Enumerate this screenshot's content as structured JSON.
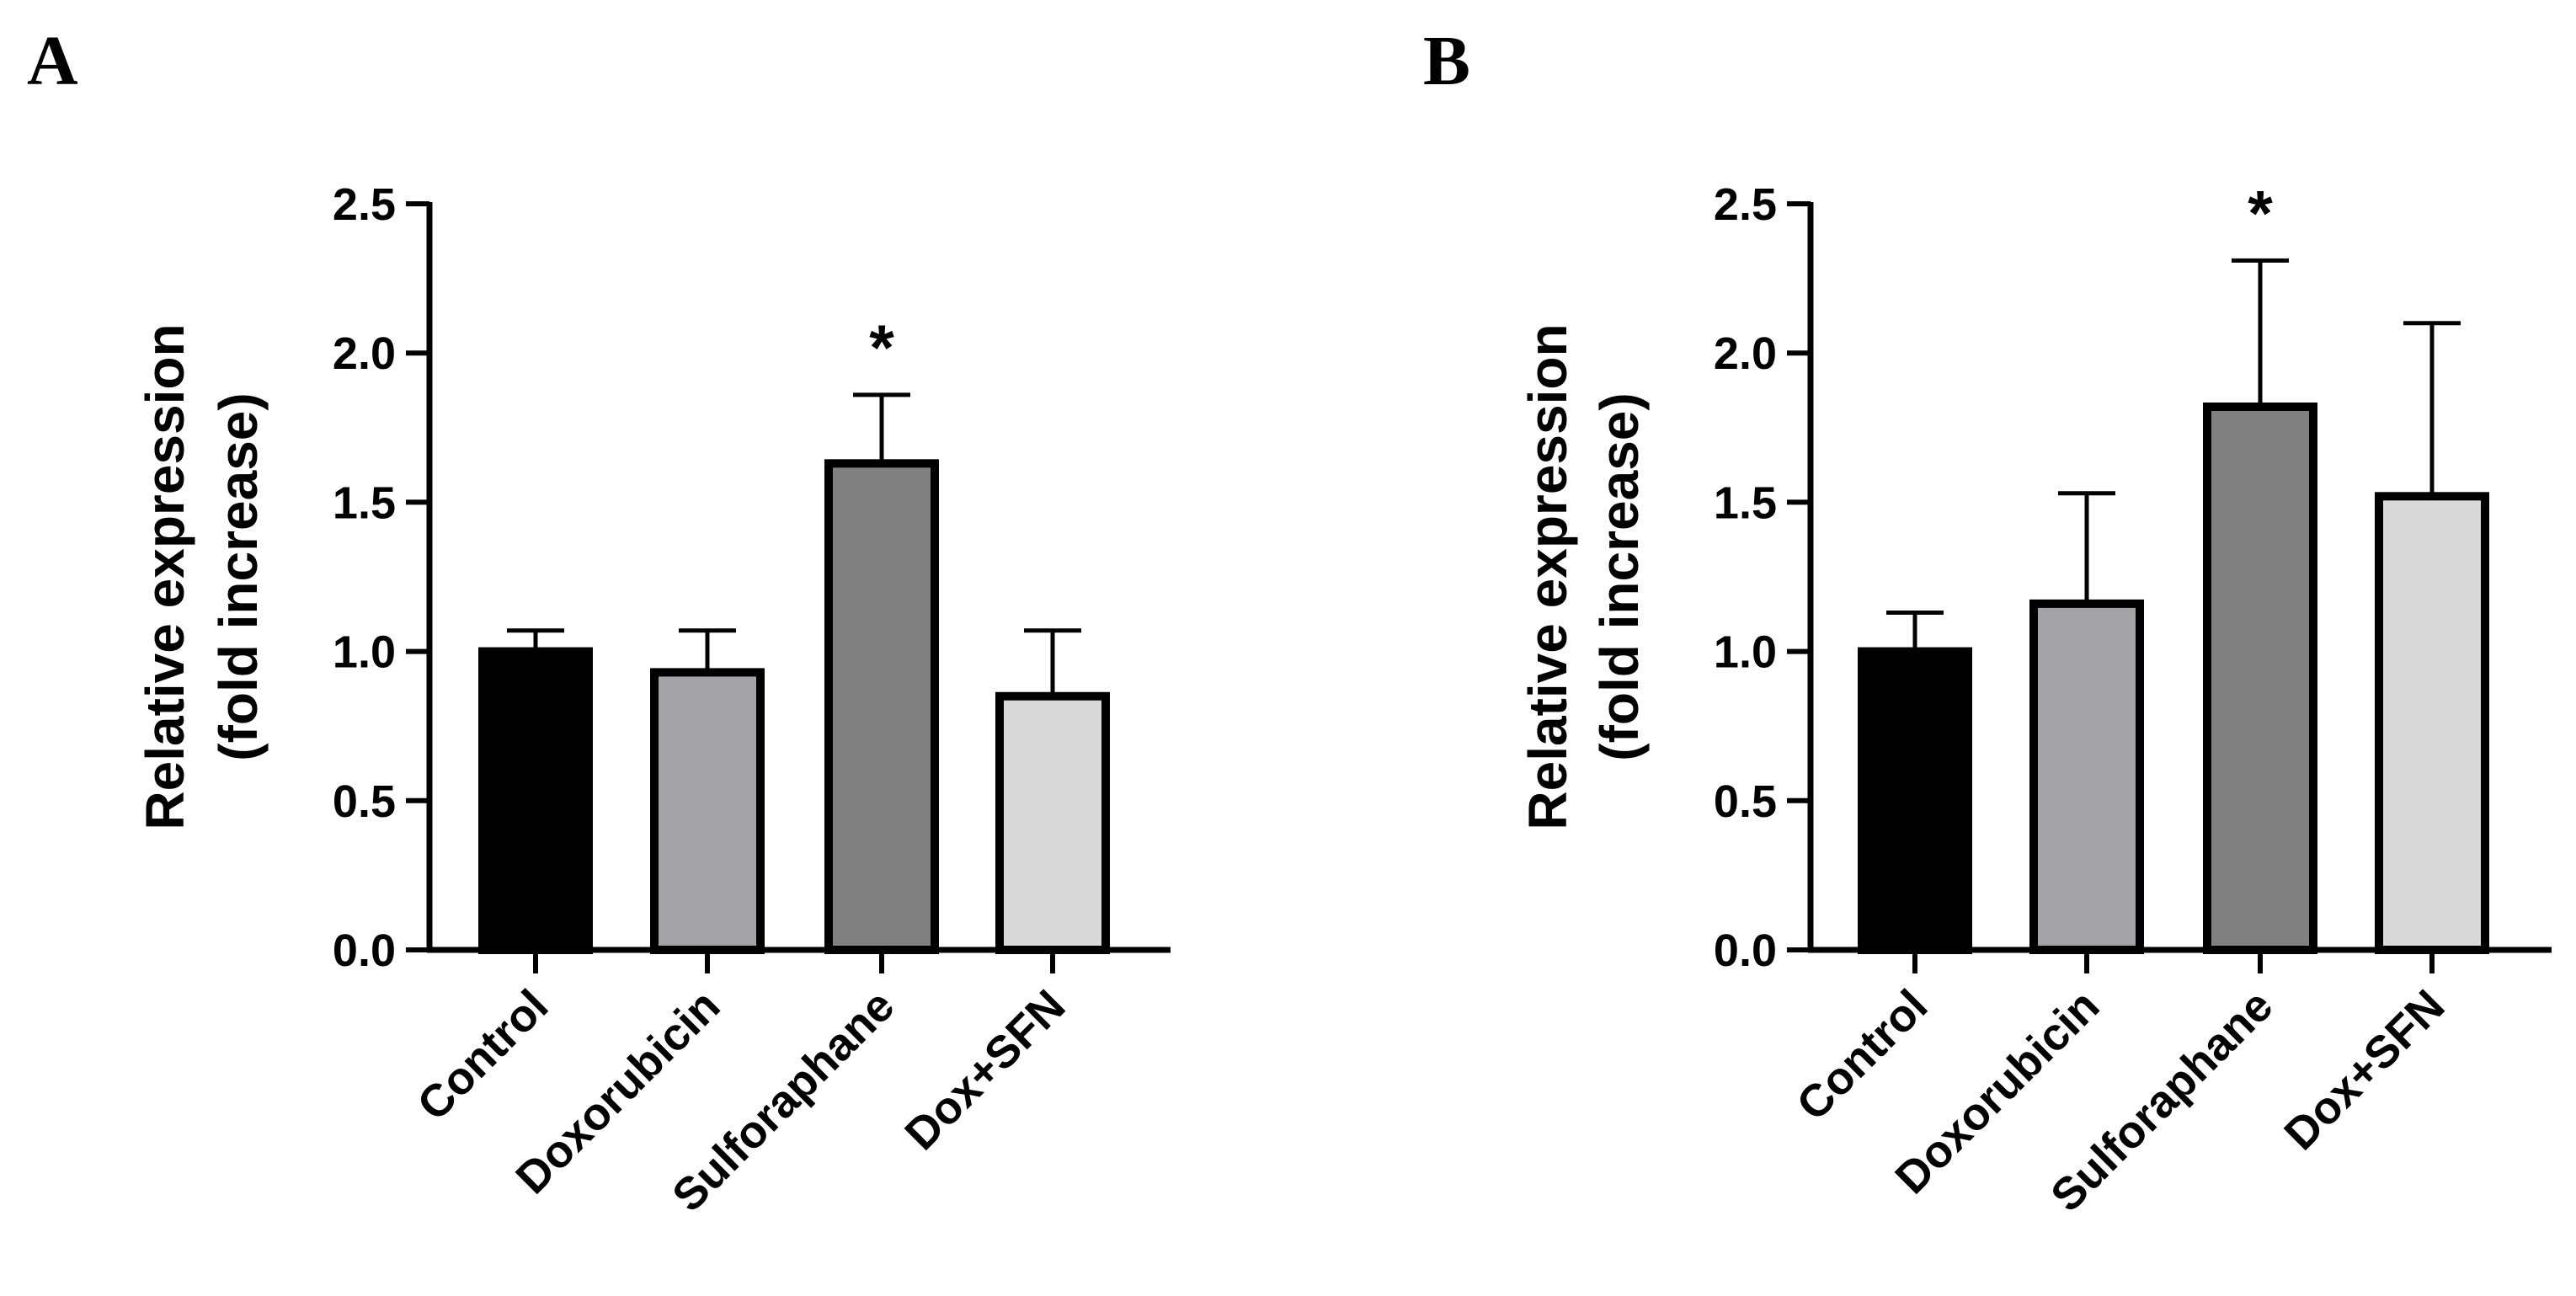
{
  "chart_data": [
    {
      "panel": "A",
      "type": "bar",
      "categories": [
        "Control",
        "Doxorubicin",
        "Sulforaphane",
        "Dox+SFN"
      ],
      "values": [
        1.0,
        0.93,
        1.63,
        0.85
      ],
      "errors": [
        0.07,
        0.14,
        0.23,
        0.22
      ],
      "significance": [
        "",
        "",
        "*",
        ""
      ],
      "bar_colors": [
        "#000000",
        "#a3a2a7",
        "#808080",
        "#d9d9d9"
      ],
      "ylabel": "Relative expression",
      "ylabel2": "(fold increase)",
      "ylim": [
        0,
        2.5
      ],
      "yticks": [
        "0.0",
        "0.5",
        "1.0",
        "1.5",
        "2.0",
        "2.5"
      ],
      "ytick_values": [
        0,
        0.5,
        1.0,
        1.5,
        2.0,
        2.5
      ]
    },
    {
      "panel": "B",
      "type": "bar",
      "categories": [
        "Control",
        "Doxorubicin",
        "Sulforaphane",
        "Dox+SFN"
      ],
      "values": [
        1.0,
        1.16,
        1.82,
        1.52
      ],
      "errors": [
        0.13,
        0.37,
        0.49,
        0.58
      ],
      "significance": [
        "",
        "",
        "*",
        ""
      ],
      "bar_colors": [
        "#000000",
        "#a3a2a7",
        "#808080",
        "#d9d9d9"
      ],
      "ylabel": "Relative expression",
      "ylabel2": "(fold increase)",
      "ylim": [
        0,
        2.5
      ],
      "yticks": [
        "0.0",
        "0.5",
        "1.0",
        "1.5",
        "2.0",
        "2.5"
      ],
      "ytick_values": [
        0,
        0.5,
        1.0,
        1.5,
        2.0,
        2.5
      ]
    }
  ]
}
